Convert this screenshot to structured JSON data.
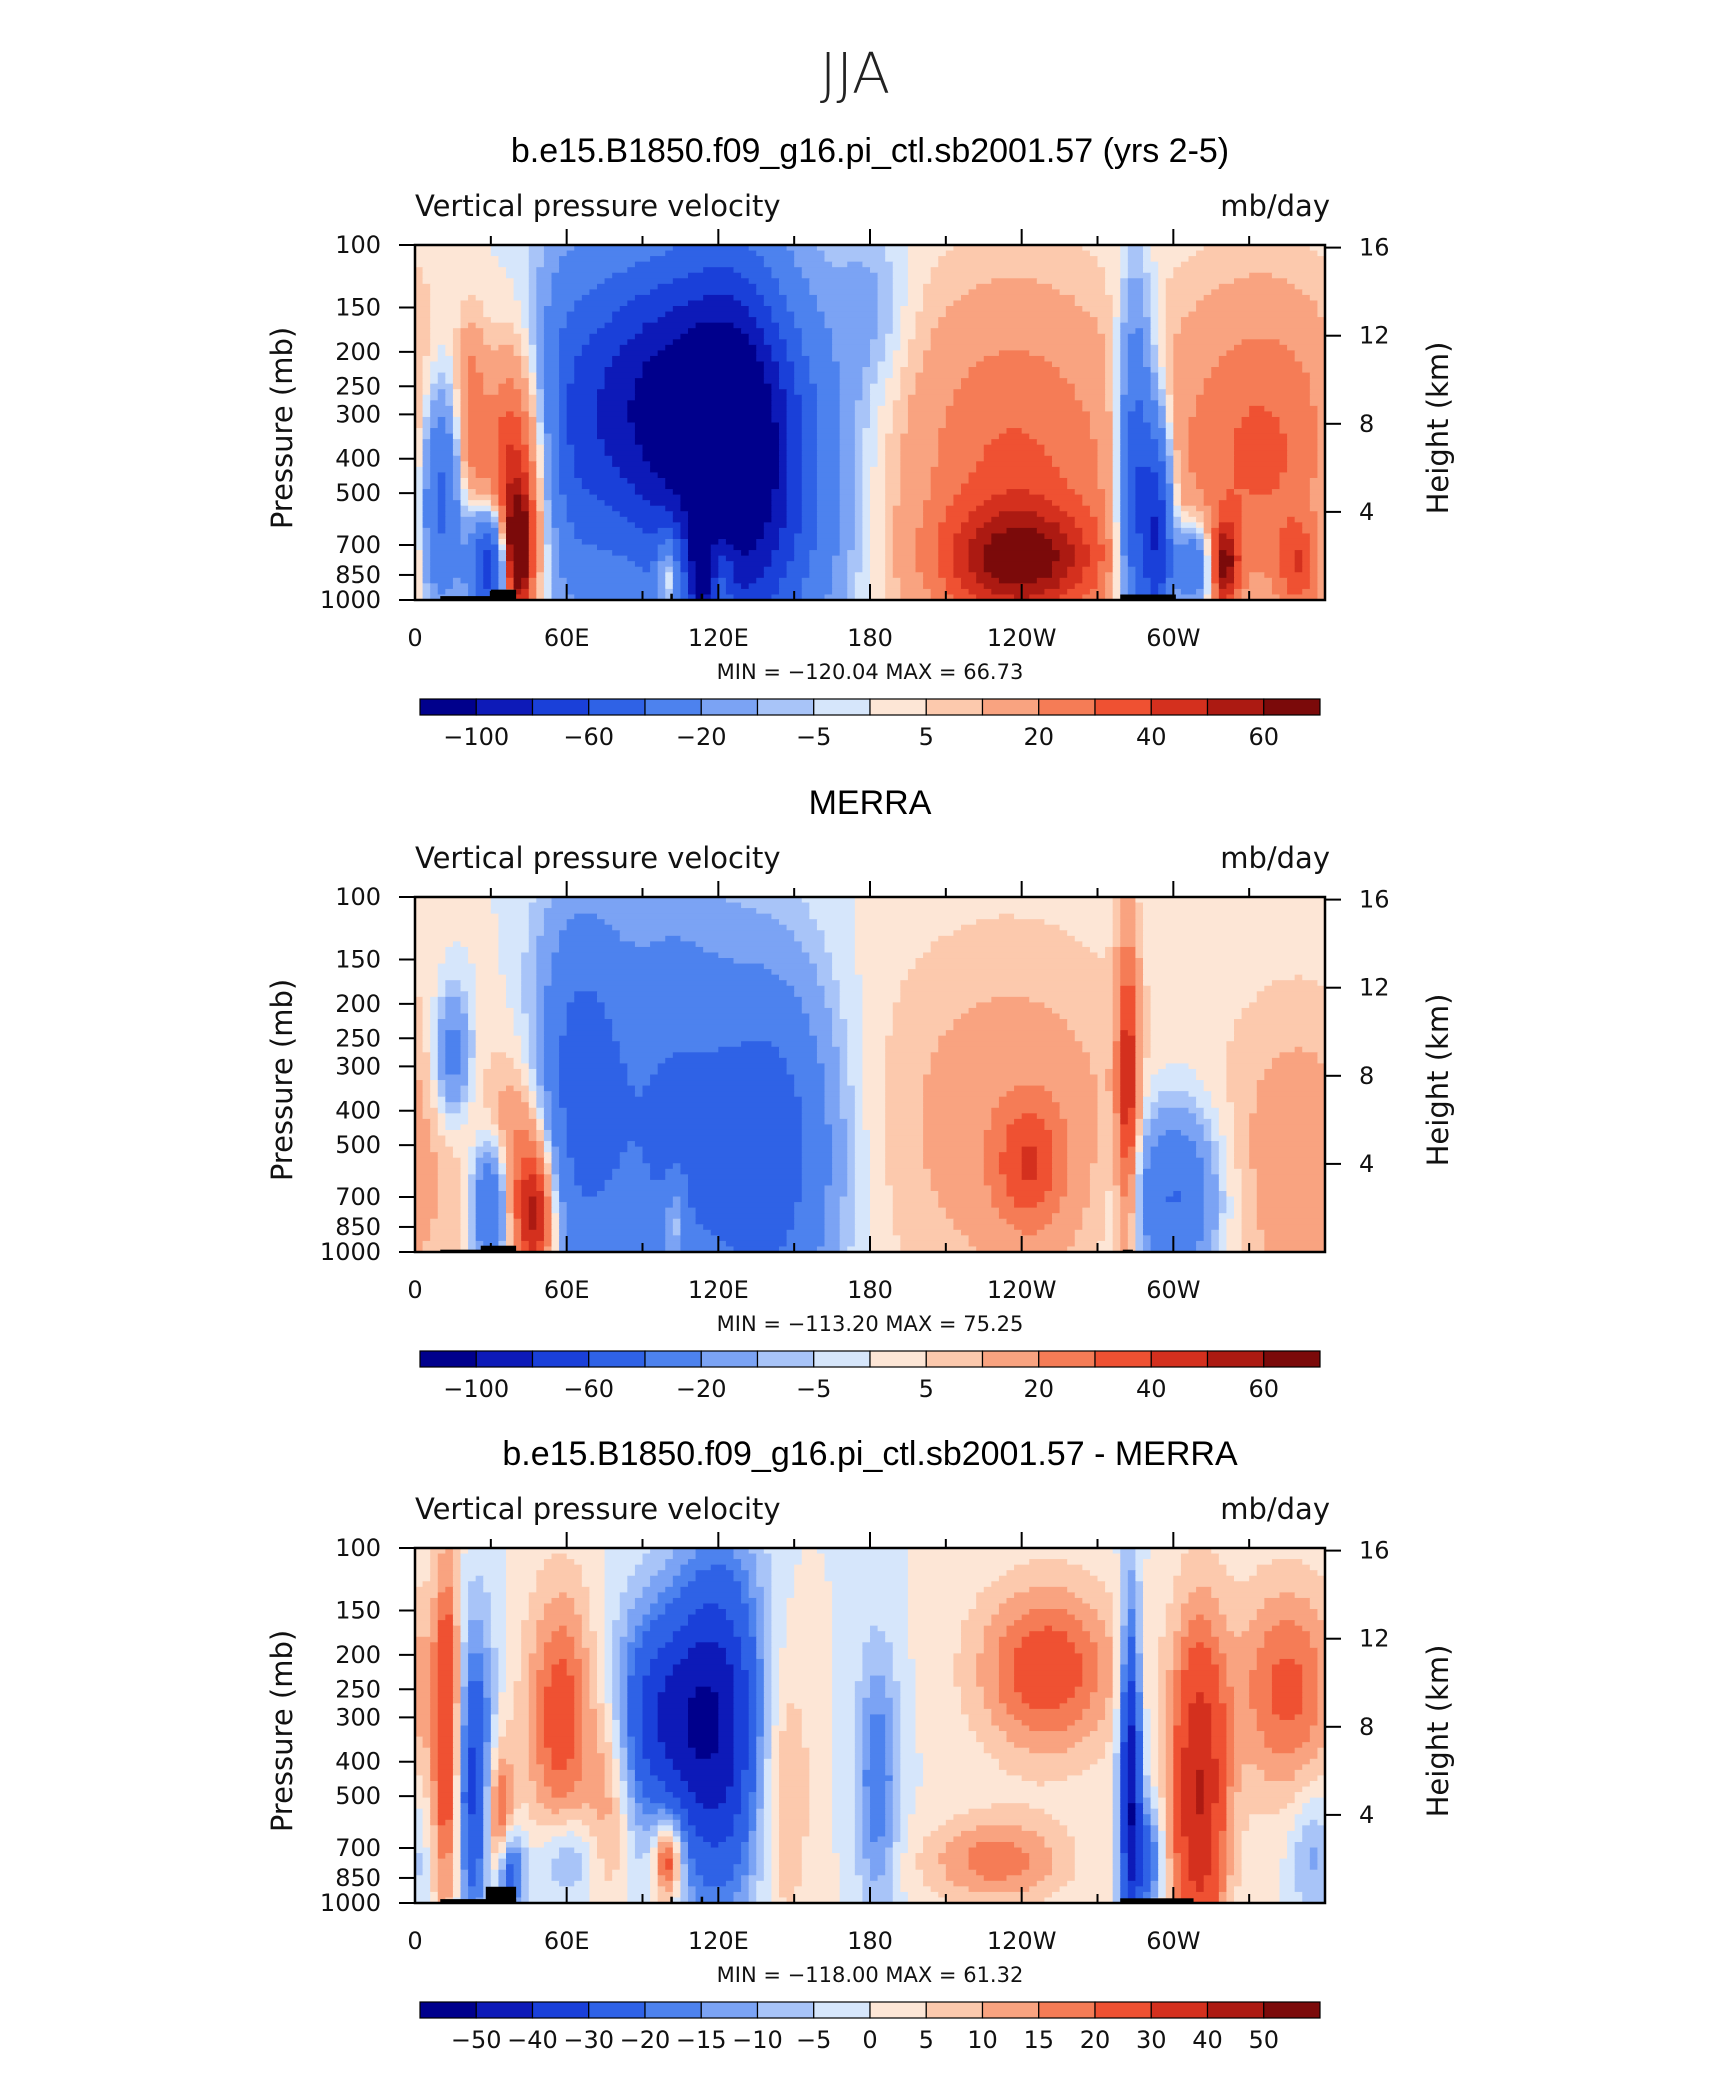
{
  "main_title": "JJA",
  "colors": {
    "abs_scale": [
      "#00008c",
      "#0d1ab8",
      "#1a40d9",
      "#2f62e6",
      "#4d82ee",
      "#7ba3f4",
      "#a8c4f8",
      "#d6e6fb",
      "#fde6d6",
      "#fcc9ad",
      "#f9a380",
      "#f57c56",
      "#ef5132",
      "#d4301e",
      "#ac1a12",
      "#7b0a0a"
    ],
    "diff_scale": [
      "#00008c",
      "#0d1ab8",
      "#1a40d9",
      "#2f62e6",
      "#4d82ee",
      "#7ba3f4",
      "#a8c4f8",
      "#d6e6fb",
      "#fde6d6",
      "#fcc9ad",
      "#f9a380",
      "#f57c56",
      "#ef5132",
      "#d4301e",
      "#ac1a12",
      "#7b0a0a"
    ]
  },
  "chart_data": [
    {
      "type": "heatmap",
      "title": "b.e15.B1850.f09_g16.pi_ctl.sb2001.57 (yrs 2-5)",
      "left_label": "Vertical pressure velocity",
      "right_label": "mb/day",
      "ylabel": "Pressure (mb)",
      "y2label": "Height (km)",
      "x_ticks": [
        "0",
        "60E",
        "120E",
        "180",
        "120W",
        "60W"
      ],
      "xlim": [
        0,
        360
      ],
      "y_ticks": [
        "100",
        "150",
        "200",
        "250",
        "300",
        "400",
        "500",
        "700",
        "850",
        "1000"
      ],
      "y_tick_values": [
        100,
        150,
        200,
        250,
        300,
        400,
        500,
        700,
        850,
        1000
      ],
      "y2_ticks": [
        "16",
        "12",
        "8",
        "4"
      ],
      "y2_tick_values": [
        16,
        12,
        8,
        4
      ],
      "min_max": "MIN = −120.04   MAX =   66.73",
      "colorbar_labels": [
        "−100",
        "−60",
        "−20",
        "−5",
        "5",
        "20",
        "40",
        "60"
      ],
      "features": [
        {
          "lon": 10,
          "p": 520,
          "sx": 6,
          "sy": 0.5,
          "v": -55
        },
        {
          "lon": 22,
          "p": 300,
          "sx": 4,
          "sy": 0.4,
          "v": 25
        },
        {
          "lon": 30,
          "p": 800,
          "sx": 6,
          "sy": 0.25,
          "v": -90
        },
        {
          "lon": 40,
          "p": 450,
          "sx": 9,
          "sy": 0.6,
          "v": 55
        },
        {
          "lon": 40,
          "p": 750,
          "sx": 4,
          "sy": 0.25,
          "v": 75
        },
        {
          "lon": 62,
          "p": 400,
          "sx": 8,
          "sy": 0.9,
          "v": -15
        },
        {
          "lon": 95,
          "p": 330,
          "sx": 28,
          "sy": 0.7,
          "v": -80
        },
        {
          "lon": 125,
          "p": 400,
          "sx": 15,
          "sy": 0.9,
          "v": -70
        },
        {
          "lon": 145,
          "p": 500,
          "sx": 18,
          "sy": 0.8,
          "v": -45
        },
        {
          "lon": 100,
          "p": 220,
          "sx": 30,
          "sy": 0.6,
          "v": -30
        },
        {
          "lon": 100,
          "p": 820,
          "sx": 3,
          "sy": 0.2,
          "v": 45
        },
        {
          "lon": 113,
          "p": 850,
          "sx": 3,
          "sy": 0.2,
          "v": -60
        },
        {
          "lon": 122,
          "p": 850,
          "sx": 3,
          "sy": 0.2,
          "v": 25
        },
        {
          "lon": 180,
          "p": 150,
          "sx": 10,
          "sy": 0.4,
          "v": -12
        },
        {
          "lon": 237,
          "p": 450,
          "sx": 32,
          "sy": 0.85,
          "v": 32
        },
        {
          "lon": 240,
          "p": 780,
          "sx": 22,
          "sy": 0.25,
          "v": 45
        },
        {
          "lon": 285,
          "p": 500,
          "sx": 5,
          "sy": 0.8,
          "v": -70
        },
        {
          "lon": 294,
          "p": 650,
          "sx": 4,
          "sy": 0.5,
          "v": -80
        },
        {
          "lon": 308,
          "p": 800,
          "sx": 6,
          "sy": 0.2,
          "v": -50
        },
        {
          "lon": 320,
          "p": 800,
          "sx": 4,
          "sy": 0.2,
          "v": 55
        },
        {
          "lon": 335,
          "p": 380,
          "sx": 26,
          "sy": 0.75,
          "v": 32
        },
        {
          "lon": 350,
          "p": 820,
          "sx": 6,
          "sy": 0.2,
          "v": 25
        }
      ]
    },
    {
      "type": "heatmap",
      "title": "MERRA",
      "left_label": "Vertical pressure velocity",
      "right_label": "mb/day",
      "ylabel": "Pressure (mb)",
      "y2label": "Height (km)",
      "x_ticks": [
        "0",
        "60E",
        "120E",
        "180",
        "120W",
        "60W"
      ],
      "xlim": [
        0,
        360
      ],
      "y_ticks": [
        "100",
        "150",
        "200",
        "250",
        "300",
        "400",
        "500",
        "700",
        "850",
        "1000"
      ],
      "y_tick_values": [
        100,
        150,
        200,
        250,
        300,
        400,
        500,
        700,
        850,
        1000
      ],
      "y2_ticks": [
        "16",
        "12",
        "8",
        "4"
      ],
      "y2_tick_values": [
        16,
        12,
        8,
        4
      ],
      "min_max": "MIN = −113.20   MAX =   75.25",
      "colorbar_labels": [
        "−100",
        "−60",
        "−20",
        "−5",
        "5",
        "20",
        "40",
        "60"
      ],
      "features": [
        {
          "lon": 15,
          "p": 280,
          "sx": 5,
          "sy": 0.3,
          "v": -30
        },
        {
          "lon": 30,
          "p": 750,
          "sx": 5,
          "sy": 0.3,
          "v": -55
        },
        {
          "lon": 42,
          "p": 620,
          "sx": 10,
          "sy": 0.5,
          "v": 30
        },
        {
          "lon": 48,
          "p": 800,
          "sx": 5,
          "sy": 0.3,
          "v": 40
        },
        {
          "lon": 65,
          "p": 350,
          "sx": 12,
          "sy": 0.8,
          "v": -50
        },
        {
          "lon": 100,
          "p": 450,
          "sx": 18,
          "sy": 1.0,
          "v": -40
        },
        {
          "lon": 140,
          "p": 520,
          "sx": 18,
          "sy": 0.8,
          "v": -55
        },
        {
          "lon": 103,
          "p": 820,
          "sx": 3,
          "sy": 0.2,
          "v": 30
        },
        {
          "lon": 235,
          "p": 430,
          "sx": 40,
          "sy": 0.9,
          "v": 15
        },
        {
          "lon": 243,
          "p": 570,
          "sx": 10,
          "sy": 0.3,
          "v": 28
        },
        {
          "lon": 282,
          "p": 350,
          "sx": 3,
          "sy": 0.7,
          "v": 45
        },
        {
          "lon": 300,
          "p": 700,
          "sx": 12,
          "sy": 0.4,
          "v": -45
        },
        {
          "lon": 350,
          "p": 560,
          "sx": 22,
          "sy": 0.8,
          "v": 15
        }
      ]
    },
    {
      "type": "heatmap",
      "title": "b.e15.B1850.f09_g16.pi_ctl.sb2001.57 - MERRA",
      "left_label": "Vertical pressure velocity",
      "right_label": "mb/day",
      "ylabel": "Pressure (mb)",
      "y2label": "Height (km)",
      "x_ticks": [
        "0",
        "60E",
        "120E",
        "180",
        "120W",
        "60W"
      ],
      "xlim": [
        0,
        360
      ],
      "y_ticks": [
        "100",
        "150",
        "200",
        "250",
        "300",
        "400",
        "500",
        "700",
        "850",
        "1000"
      ],
      "y_tick_values": [
        100,
        150,
        200,
        250,
        300,
        400,
        500,
        700,
        850,
        1000
      ],
      "y2_ticks": [
        "16",
        "12",
        "8",
        "4"
      ],
      "y2_tick_values": [
        16,
        12,
        8,
        4
      ],
      "min_max": "MIN = −118.00   MAX =   61.32",
      "colorbar_labels": [
        "−50",
        "−40",
        "−30",
        "−20",
        "−15",
        "−10",
        "−5",
        "0",
        "5",
        "10",
        "15",
        "20",
        "30",
        "40",
        "50"
      ],
      "features": [
        {
          "lon": 13,
          "p": 350,
          "sx": 4,
          "sy": 0.8,
          "v": 35
        },
        {
          "lon": 23,
          "p": 450,
          "sx": 6,
          "sy": 0.7,
          "v": -35
        },
        {
          "lon": 33,
          "p": 620,
          "sx": 4,
          "sy": 0.4,
          "v": 30
        },
        {
          "lon": 37,
          "p": 820,
          "sx": 4,
          "sy": 0.2,
          "v": -35
        },
        {
          "lon": 58,
          "p": 300,
          "sx": 10,
          "sy": 0.6,
          "v": 25
        },
        {
          "lon": 60,
          "p": 750,
          "sx": 8,
          "sy": 0.2,
          "v": -15
        },
        {
          "lon": 95,
          "p": 300,
          "sx": 14,
          "sy": 0.5,
          "v": -30
        },
        {
          "lon": 100,
          "p": 750,
          "sx": 4,
          "sy": 0.2,
          "v": 35
        },
        {
          "lon": 120,
          "p": 320,
          "sx": 14,
          "sy": 0.8,
          "v": -45
        },
        {
          "lon": 77,
          "p": 470,
          "sx": 6,
          "sy": 0.5,
          "v": 15
        },
        {
          "lon": 145,
          "p": 450,
          "sx": 8,
          "sy": 0.7,
          "v": 15
        },
        {
          "lon": 183,
          "p": 450,
          "sx": 6,
          "sy": 0.6,
          "v": -20
        },
        {
          "lon": 250,
          "p": 220,
          "sx": 20,
          "sy": 0.4,
          "v": 25
        },
        {
          "lon": 230,
          "p": 760,
          "sx": 20,
          "sy": 0.2,
          "v": 18
        },
        {
          "lon": 283,
          "p": 450,
          "sx": 3,
          "sy": 0.8,
          "v": -50
        },
        {
          "lon": 290,
          "p": 750,
          "sx": 4,
          "sy": 0.25,
          "v": -25
        },
        {
          "lon": 310,
          "p": 500,
          "sx": 8,
          "sy": 0.8,
          "v": 40
        },
        {
          "lon": 345,
          "p": 250,
          "sx": 15,
          "sy": 0.5,
          "v": 22
        },
        {
          "lon": 355,
          "p": 720,
          "sx": 6,
          "sy": 0.3,
          "v": -12
        }
      ]
    }
  ]
}
